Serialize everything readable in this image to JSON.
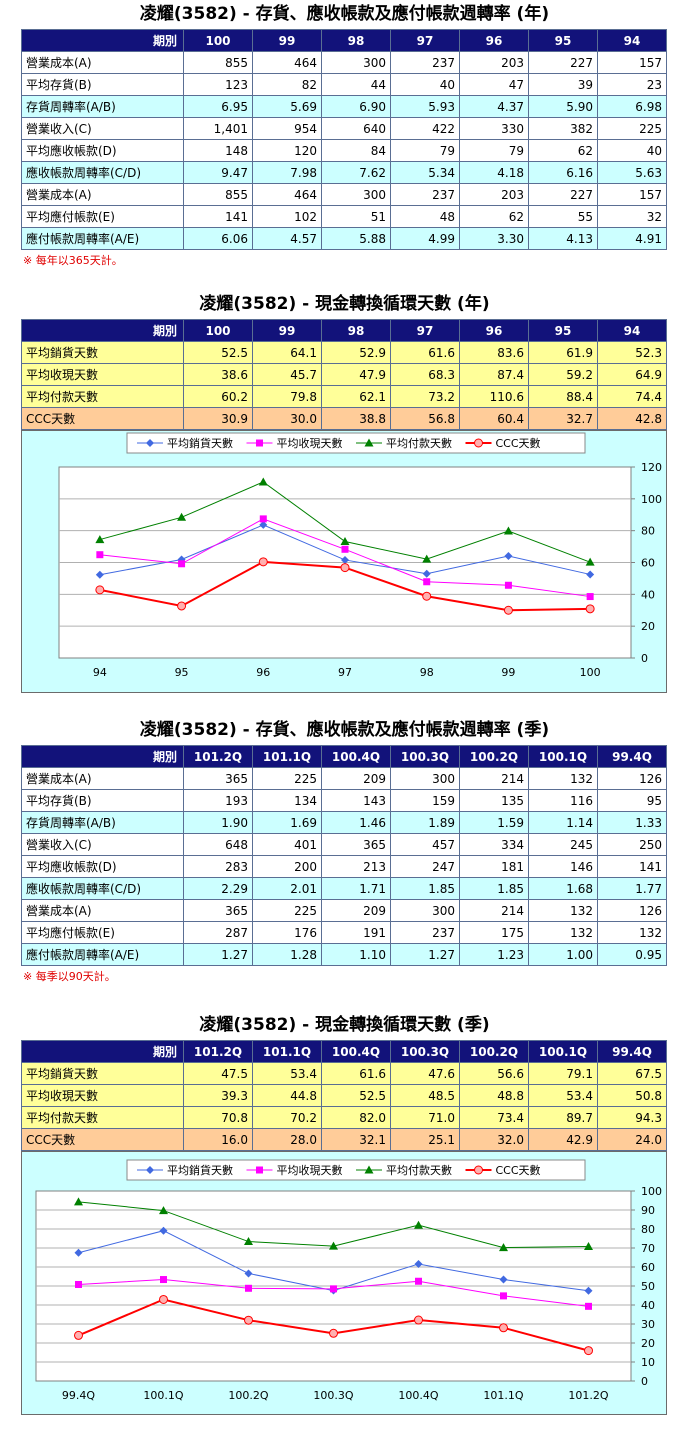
{
  "colors": {
    "header_bg": "#12127a",
    "cyan": "#ccffff",
    "yellow": "#ffff99",
    "orange": "#ffcc99",
    "note": "#e00000",
    "series": [
      "#4169e1",
      "#ff00ff",
      "#008000",
      "#ff0000"
    ]
  },
  "annual_ratio": {
    "title": "凌耀(3582) - 存貨、應收帳款及應付帳款週轉率 (年)",
    "period_label": "期別",
    "periods": [
      "100",
      "99",
      "98",
      "97",
      "96",
      "95",
      "94"
    ],
    "rows": [
      {
        "label": "營業成本(A)",
        "values": [
          "855",
          "464",
          "300",
          "237",
          "203",
          "227",
          "157"
        ]
      },
      {
        "label": "平均存貨(B)",
        "values": [
          "123",
          "82",
          "44",
          "40",
          "47",
          "39",
          "23"
        ]
      },
      {
        "label": "存貨周轉率(A/B)",
        "values": [
          "6.95",
          "5.69",
          "6.90",
          "5.93",
          "4.37",
          "5.90",
          "6.98"
        ]
      },
      {
        "label": "營業收入(C)",
        "values": [
          "1,401",
          "954",
          "640",
          "422",
          "330",
          "382",
          "225"
        ]
      },
      {
        "label": "平均應收帳款(D)",
        "values": [
          "148",
          "120",
          "84",
          "79",
          "79",
          "62",
          "40"
        ]
      },
      {
        "label": "應收帳款周轉率(C/D)",
        "values": [
          "9.47",
          "7.98",
          "7.62",
          "5.34",
          "4.18",
          "6.16",
          "5.63"
        ]
      },
      {
        "label": "營業成本(A)",
        "values": [
          "855",
          "464",
          "300",
          "237",
          "203",
          "227",
          "157"
        ]
      },
      {
        "label": "平均應付帳款(E)",
        "values": [
          "141",
          "102",
          "51",
          "48",
          "62",
          "55",
          "32"
        ]
      },
      {
        "label": "應付帳款周轉率(A/E)",
        "values": [
          "6.06",
          "4.57",
          "5.88",
          "4.99",
          "3.30",
          "4.13",
          "4.91"
        ]
      }
    ],
    "note": "※ 每年以365天計。"
  },
  "annual_ccc": {
    "title": "凌耀(3582) - 現金轉換循環天數 (年)",
    "period_label": "期別",
    "periods": [
      "100",
      "99",
      "98",
      "97",
      "96",
      "95",
      "94"
    ],
    "rows": [
      {
        "label": "平均銷貨天數",
        "values": [
          "52.5",
          "64.1",
          "52.9",
          "61.6",
          "83.6",
          "61.9",
          "52.3"
        ]
      },
      {
        "label": "平均收現天數",
        "values": [
          "38.6",
          "45.7",
          "47.9",
          "68.3",
          "87.4",
          "59.2",
          "64.9"
        ]
      },
      {
        "label": "平均付款天數",
        "values": [
          "60.2",
          "79.8",
          "62.1",
          "73.2",
          "110.6",
          "88.4",
          "74.4"
        ]
      },
      {
        "label": "CCC天數",
        "values": [
          "30.9",
          "30.0",
          "38.8",
          "56.8",
          "60.4",
          "32.7",
          "42.8"
        ]
      }
    ]
  },
  "quarterly_ratio": {
    "title": "凌耀(3582) - 存貨、應收帳款及應付帳款週轉率 (季)",
    "period_label": "期別",
    "periods": [
      "101.2Q",
      "101.1Q",
      "100.4Q",
      "100.3Q",
      "100.2Q",
      "100.1Q",
      "99.4Q"
    ],
    "rows": [
      {
        "label": "營業成本(A)",
        "values": [
          "365",
          "225",
          "209",
          "300",
          "214",
          "132",
          "126"
        ]
      },
      {
        "label": "平均存貨(B)",
        "values": [
          "193",
          "134",
          "143",
          "159",
          "135",
          "116",
          "95"
        ]
      },
      {
        "label": "存貨周轉率(A/B)",
        "values": [
          "1.90",
          "1.69",
          "1.46",
          "1.89",
          "1.59",
          "1.14",
          "1.33"
        ]
      },
      {
        "label": "營業收入(C)",
        "values": [
          "648",
          "401",
          "365",
          "457",
          "334",
          "245",
          "250"
        ]
      },
      {
        "label": "平均應收帳款(D)",
        "values": [
          "283",
          "200",
          "213",
          "247",
          "181",
          "146",
          "141"
        ]
      },
      {
        "label": "應收帳款周轉率(C/D)",
        "values": [
          "2.29",
          "2.01",
          "1.71",
          "1.85",
          "1.85",
          "1.68",
          "1.77"
        ]
      },
      {
        "label": "營業成本(A)",
        "values": [
          "365",
          "225",
          "209",
          "300",
          "214",
          "132",
          "126"
        ]
      },
      {
        "label": "平均應付帳款(E)",
        "values": [
          "287",
          "176",
          "191",
          "237",
          "175",
          "132",
          "132"
        ]
      },
      {
        "label": "應付帳款周轉率(A/E)",
        "values": [
          "1.27",
          "1.28",
          "1.10",
          "1.27",
          "1.23",
          "1.00",
          "0.95"
        ]
      }
    ],
    "note": "※ 每季以90天計。"
  },
  "quarterly_ccc": {
    "title": "凌耀(3582) - 現金轉換循環天數 (季)",
    "period_label": "期別",
    "periods": [
      "101.2Q",
      "101.1Q",
      "100.4Q",
      "100.3Q",
      "100.2Q",
      "100.1Q",
      "99.4Q"
    ],
    "rows": [
      {
        "label": "平均銷貨天數",
        "values": [
          "47.5",
          "53.4",
          "61.6",
          "47.6",
          "56.6",
          "79.1",
          "67.5"
        ]
      },
      {
        "label": "平均收現天數",
        "values": [
          "39.3",
          "44.8",
          "52.5",
          "48.5",
          "48.8",
          "53.4",
          "50.8"
        ]
      },
      {
        "label": "平均付款天數",
        "values": [
          "70.8",
          "70.2",
          "82.0",
          "71.0",
          "73.4",
          "89.7",
          "94.3"
        ]
      },
      {
        "label": "CCC天數",
        "values": [
          "16.0",
          "28.0",
          "32.1",
          "25.1",
          "32.0",
          "42.9",
          "24.0"
        ]
      }
    ]
  },
  "chart_data": [
    {
      "type": "line",
      "categories": [
        "94",
        "95",
        "96",
        "97",
        "98",
        "99",
        "100"
      ],
      "series": [
        {
          "name": "平均銷貨天數",
          "values": [
            52.3,
            61.9,
            83.6,
            61.6,
            52.9,
            64.1,
            52.5
          ]
        },
        {
          "name": "平均收現天數",
          "values": [
            64.9,
            59.2,
            87.4,
            68.3,
            47.9,
            45.7,
            38.6
          ]
        },
        {
          "name": "平均付款天數",
          "values": [
            74.4,
            88.4,
            110.6,
            73.2,
            62.1,
            79.8,
            60.2
          ]
        },
        {
          "name": "CCC天數",
          "values": [
            42.8,
            32.7,
            60.4,
            56.8,
            38.8,
            30.0,
            30.9
          ]
        }
      ],
      "yticks": [
        "0",
        "20",
        "40",
        "60",
        "80",
        "100",
        "120"
      ],
      "ylim": [
        0,
        120
      ],
      "grid": true,
      "legend": "top"
    },
    {
      "type": "line",
      "categories": [
        "99.4Q",
        "100.1Q",
        "100.2Q",
        "100.3Q",
        "100.4Q",
        "101.1Q",
        "101.2Q"
      ],
      "series": [
        {
          "name": "平均銷貨天數",
          "values": [
            67.5,
            79.1,
            56.6,
            47.6,
            61.6,
            53.4,
            47.5
          ]
        },
        {
          "name": "平均收現天數",
          "values": [
            50.8,
            53.4,
            48.8,
            48.5,
            52.5,
            44.8,
            39.3
          ]
        },
        {
          "name": "平均付款天數",
          "values": [
            94.3,
            89.7,
            73.4,
            71.0,
            82.0,
            70.2,
            70.8
          ]
        },
        {
          "name": "CCC天數",
          "values": [
            24.0,
            42.9,
            32.0,
            25.1,
            32.1,
            28.0,
            16.0
          ]
        }
      ],
      "yticks": [
        "0",
        "10",
        "20",
        "30",
        "40",
        "50",
        "60",
        "70",
        "80",
        "90",
        "100"
      ],
      "ylim": [
        0,
        100
      ],
      "grid": true,
      "legend": "top"
    }
  ]
}
